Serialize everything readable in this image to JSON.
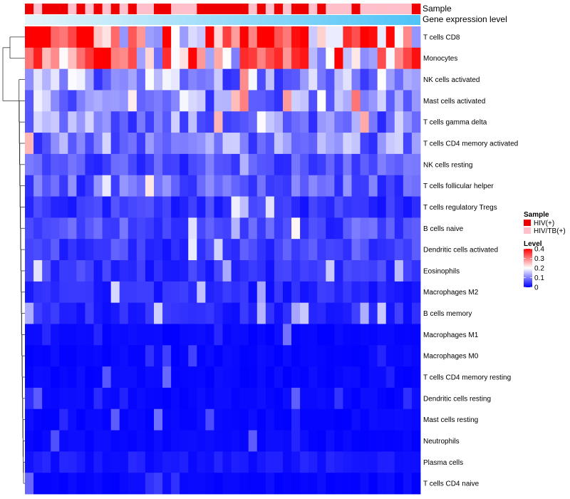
{
  "chart_data": {
    "type": "heatmap",
    "rows": [
      "T cells CD8",
      "Monocytes",
      "NK cells activated",
      "Mast cells activated",
      "T cells gamma delta",
      "T cells CD4 memory activated",
      "NK cells resting",
      "T cells follicular helper",
      "T cells regulatory  Tregs",
      "B cells naive",
      "Dendritic cells activated",
      "Eosinophils",
      "Macrophages M2",
      "B cells memory",
      "Macrophages M1",
      "Macrophages M0",
      "T cells CD4 memory resting",
      "Dendritic cells resting",
      "Mast cells resting",
      "Neutrophils",
      "Plasma cells",
      "T cells CD4 naive"
    ],
    "n_columns": 46,
    "value_range": [
      0,
      0.4
    ],
    "row_mean_levels": [
      0.33,
      0.24,
      0.12,
      0.12,
      0.1,
      0.1,
      0.06,
      0.07,
      0.04,
      0.06,
      0.05,
      0.04,
      0.03,
      0.03,
      0.01,
      0.01,
      0.01,
      0.01,
      0.0,
      0.0,
      0.02,
      0.01
    ],
    "sample_annotation": [
      "HIV(+)",
      "HIV/TB(+)",
      "HIV(+)",
      "HIV(+)",
      "HIV(+)",
      "HIV/TB(+)",
      "HIV(+)",
      "HIV/TB(+)",
      "HIV(+)",
      "HIV/TB(+)",
      "HIV(+)",
      "HIV/TB(+)",
      "HIV(+)",
      "HIV/TB(+)",
      "HIV/TB(+)",
      "HIV(+)",
      "HIV(+)",
      "HIV/TB(+)",
      "HIV/TB(+)",
      "HIV/TB(+)",
      "HIV(+)",
      "HIV(+)",
      "HIV(+)",
      "HIV(+)",
      "HIV(+)",
      "HIV(+)",
      "HIV/TB(+)",
      "HIV(+)",
      "HIV/TB(+)",
      "HIV(+)",
      "HIV/TB(+)",
      "HIV(+)",
      "HIV(+)",
      "HIV/TB(+)",
      "HIV(+)",
      "HIV/TB(+)",
      "HIV/TB(+)",
      "HIV/TB(+)",
      "HIV(+)",
      "HIV/TB(+)",
      "HIV/TB(+)",
      "HIV/TB(+)",
      "HIV/TB(+)",
      "HIV/TB(+)",
      "HIV/TB(+)",
      "HIV(+)"
    ],
    "annotations": {
      "sample_label": "Sample",
      "expression_label": "Gene expression level"
    },
    "legend": {
      "sample_title": "Sample",
      "sample_entries": [
        {
          "name": "HIV(+)",
          "color": "#ee0000"
        },
        {
          "name": "HIV/TB(+)",
          "color": "#ffc0cb"
        }
      ],
      "level_title": "Level",
      "level_ticks": [
        "0.4",
        "0.3",
        "0.2",
        "0.1",
        "0"
      ],
      "level_tick_values": [
        0.4,
        0.3,
        0.2,
        0.1,
        0
      ]
    },
    "colors": {
      "low": "#0000ff",
      "mid": "#ffffff",
      "high": "#ff0000",
      "gradient_start": "#e6f5fb",
      "gradient_end": "#4fc3f7"
    }
  }
}
